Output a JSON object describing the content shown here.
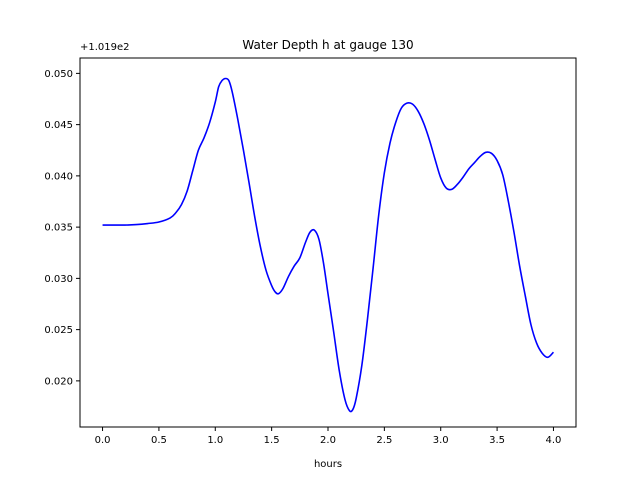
{
  "chart_data": {
    "type": "line",
    "title": "Water Depth h at gauge 130",
    "xlabel": "hours",
    "ylabel": "",
    "offset_label": "+1.019e2",
    "y_offset": 101.9,
    "xlim": [
      -0.2,
      4.2
    ],
    "ylim": [
      0.0155,
      0.0515
    ],
    "xticks": [
      0.0,
      0.5,
      1.0,
      1.5,
      2.0,
      2.5,
      3.0,
      3.5,
      4.0
    ],
    "xtick_labels": [
      "0.0",
      "0.5",
      "1.0",
      "1.5",
      "2.0",
      "2.5",
      "3.0",
      "3.5",
      "4.0"
    ],
    "yticks": [
      0.02,
      0.025,
      0.03,
      0.035,
      0.04,
      0.045,
      0.05
    ],
    "ytick_labels": [
      "0.020",
      "0.025",
      "0.030",
      "0.035",
      "0.040",
      "0.045",
      "0.050"
    ],
    "grid": false,
    "series": [
      {
        "color": "#0000ff",
        "x": [
          0.0,
          0.1,
          0.2,
          0.3,
          0.4,
          0.5,
          0.6,
          0.65,
          0.7,
          0.75,
          0.8,
          0.85,
          0.9,
          0.95,
          1.0,
          1.03,
          1.06,
          1.09,
          1.12,
          1.15,
          1.2,
          1.25,
          1.3,
          1.35,
          1.4,
          1.45,
          1.5,
          1.53,
          1.56,
          1.6,
          1.65,
          1.7,
          1.75,
          1.8,
          1.84,
          1.88,
          1.92,
          1.96,
          2.0,
          2.05,
          2.1,
          2.15,
          2.19,
          2.22,
          2.25,
          2.3,
          2.35,
          2.4,
          2.45,
          2.5,
          2.55,
          2.6,
          2.65,
          2.7,
          2.75,
          2.8,
          2.85,
          2.9,
          2.95,
          3.0,
          3.05,
          3.1,
          3.15,
          3.2,
          3.25,
          3.3,
          3.35,
          3.4,
          3.45,
          3.5,
          3.55,
          3.6,
          3.65,
          3.7,
          3.75,
          3.8,
          3.85,
          3.9,
          3.95,
          4.0
        ],
        "y": [
          0.0352,
          0.0352,
          0.0352,
          0.03525,
          0.03535,
          0.0355,
          0.0359,
          0.0364,
          0.0372,
          0.0385,
          0.0405,
          0.0425,
          0.0437,
          0.0452,
          0.0472,
          0.0487,
          0.0493,
          0.0495,
          0.0493,
          0.0482,
          0.0455,
          0.0425,
          0.0393,
          0.036,
          0.0331,
          0.0308,
          0.0293,
          0.0287,
          0.0285,
          0.029,
          0.0302,
          0.0312,
          0.032,
          0.0335,
          0.0345,
          0.0347,
          0.0338,
          0.0315,
          0.0285,
          0.0248,
          0.021,
          0.0182,
          0.0171,
          0.0172,
          0.0183,
          0.0215,
          0.026,
          0.031,
          0.0362,
          0.0403,
          0.0432,
          0.0452,
          0.0466,
          0.0471,
          0.047,
          0.0463,
          0.0451,
          0.0435,
          0.0416,
          0.0398,
          0.0388,
          0.0387,
          0.0392,
          0.0399,
          0.0407,
          0.0413,
          0.0419,
          0.0423,
          0.0422,
          0.0415,
          0.0401,
          0.0375,
          0.0345,
          0.0312,
          0.0283,
          0.0255,
          0.0237,
          0.0227,
          0.0223,
          0.0228
        ]
      }
    ]
  }
}
